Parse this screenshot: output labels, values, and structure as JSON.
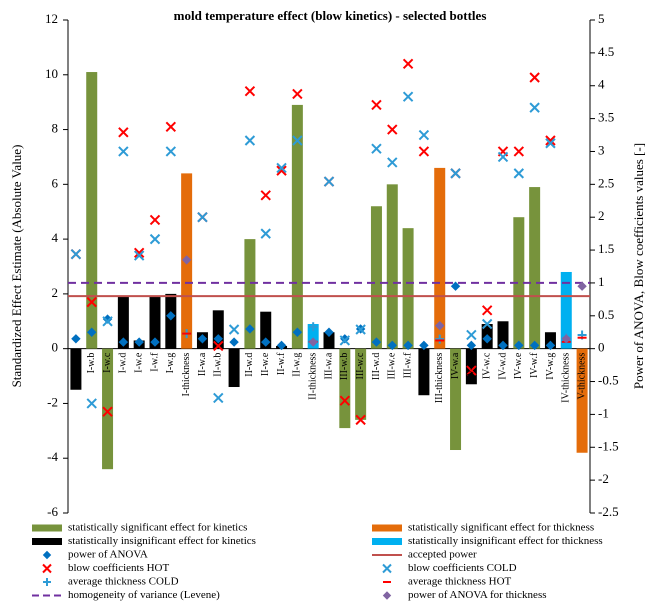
{
  "chart_data": {
    "type": "combo",
    "title": "mold temperature effect (blow kinetics) - selected bottles",
    "y_label": "Standardized Effect Estimate (Absolute Value)",
    "y2_label": "Power of ANOVA, Blow coefficients values [-]",
    "categories": [
      null,
      "I-w.b",
      "I-w.c",
      "I-w.d",
      "I-w.e",
      "I-w.f",
      "I-w.g",
      "I-thickness",
      "II-w.a",
      "II-w.b",
      null,
      "II-w.d",
      "II-w.e",
      "II-w.f",
      "II-w.g",
      "II-thickness",
      "III-w.a",
      "III-w.b",
      "III-w.c",
      "III-w.d",
      "III-w.e",
      "III-w.f",
      "III-w.g",
      "III-thickness",
      "IV-w.a",
      "IV-w.b",
      "IV-w.c",
      "IV-w.d",
      "IV-w.e",
      "IV-w.f",
      "IV-w.g",
      "IV-thickness",
      "V-thickness"
    ],
    "ylim": [
      -6,
      12
    ],
    "yticks": [
      -6,
      -4,
      -2,
      0,
      2,
      4,
      6,
      8,
      10,
      12
    ],
    "y2lim": [
      -2.5,
      5
    ],
    "y2ticks": [
      -2.5,
      -2,
      -1.5,
      -1,
      -0.5,
      0,
      0.5,
      1,
      1.5,
      2,
      2.5,
      3,
      3.5,
      4,
      4.5,
      5
    ],
    "series": [
      {
        "name": "statistically significant effect for kinetics",
        "kind": "bar",
        "color": "#77933c",
        "values": [
          null,
          10.1,
          -4.4,
          null,
          null,
          null,
          null,
          null,
          null,
          null,
          null,
          4.0,
          null,
          null,
          8.9,
          null,
          null,
          -2.9,
          -2.6,
          5.2,
          6.0,
          4.4,
          null,
          null,
          -3.7,
          null,
          null,
          null,
          4.8,
          5.9,
          null,
          null,
          null
        ]
      },
      {
        "name": "statistically significant effect for thickness",
        "kind": "bar",
        "color": "#e46c0a",
        "values": [
          null,
          null,
          null,
          null,
          null,
          null,
          null,
          6.4,
          null,
          null,
          null,
          null,
          null,
          null,
          null,
          null,
          null,
          null,
          null,
          null,
          null,
          null,
          null,
          6.6,
          null,
          null,
          null,
          null,
          null,
          null,
          null,
          null,
          -3.8
        ]
      },
      {
        "name": "statistically insignificant effect for kinetics",
        "kind": "bar",
        "color": "#000000",
        "values": [
          -1.5,
          null,
          null,
          1.9,
          0.3,
          1.9,
          2.0,
          null,
          0.6,
          1.4,
          -1.4,
          null,
          1.35,
          0.1,
          null,
          null,
          0.6,
          null,
          null,
          null,
          null,
          null,
          -1.7,
          null,
          null,
          -1.3,
          0.9,
          1.0,
          null,
          null,
          0.6,
          null,
          null
        ]
      },
      {
        "name": "statistically insignificant effect for thickness",
        "kind": "bar",
        "color": "#00b0f0",
        "values": [
          null,
          null,
          null,
          null,
          null,
          null,
          null,
          null,
          null,
          null,
          null,
          null,
          null,
          null,
          null,
          0.9,
          null,
          null,
          null,
          null,
          null,
          null,
          null,
          null,
          null,
          null,
          null,
          null,
          null,
          null,
          null,
          2.8,
          null
        ]
      },
      {
        "name": "power of ANOVA",
        "kind": "marker",
        "marker": "diamond",
        "axis": "y2",
        "color": "#0070c0",
        "values": [
          0.15,
          0.25,
          0.45,
          0.1,
          0.1,
          0.1,
          0.5,
          null,
          0.15,
          0.15,
          0.1,
          0.3,
          0.1,
          0.05,
          0.25,
          null,
          0.25,
          0.15,
          0.3,
          0.1,
          0.05,
          0.05,
          0.05,
          null,
          0.95,
          0.05,
          0.15,
          0.05,
          0.05,
          0.05,
          0.05,
          null,
          null
        ]
      },
      {
        "name": "accepted power",
        "kind": "hline",
        "axis": "y2",
        "color": "#c0504d",
        "value": 0.8
      },
      {
        "name": "blow coefficients HOT",
        "kind": "marker",
        "marker": "x",
        "color": "#ff0000",
        "values": [
          3.45,
          1.7,
          -2.3,
          7.9,
          3.5,
          4.7,
          8.1,
          null,
          4.8,
          0.1,
          null,
          9.4,
          5.6,
          6.5,
          9.3,
          null,
          6.1,
          -1.9,
          -2.6,
          8.9,
          8.0,
          10.4,
          7.2,
          null,
          6.4,
          -0.8,
          1.4,
          7.2,
          7.2,
          9.9,
          7.6,
          null,
          null
        ]
      },
      {
        "name": "blow coefficients COLD",
        "kind": "marker",
        "marker": "x",
        "color": "#2e9bd6",
        "values": [
          3.45,
          -2.0,
          1.0,
          7.2,
          3.4,
          4.0,
          7.2,
          null,
          4.8,
          -1.8,
          0.7,
          7.6,
          4.2,
          6.6,
          7.6,
          null,
          6.1,
          0.3,
          0.7,
          7.3,
          6.8,
          9.2,
          7.8,
          null,
          6.4,
          0.5,
          0.9,
          7.0,
          6.4,
          8.8,
          7.5,
          null,
          null
        ]
      },
      {
        "name": "average thickness COLD",
        "kind": "marker",
        "marker": "plus",
        "color": "#2e9bd6",
        "values": [
          null,
          null,
          null,
          null,
          null,
          null,
          null,
          0.55,
          null,
          null,
          null,
          null,
          null,
          null,
          null,
          0.8,
          null,
          null,
          null,
          null,
          null,
          null,
          null,
          0.35,
          null,
          null,
          null,
          null,
          null,
          null,
          null,
          0.4,
          0.5
        ]
      },
      {
        "name": "average thickness HOT",
        "kind": "marker",
        "marker": "dash",
        "color": "#ff0000",
        "values": [
          null,
          null,
          null,
          null,
          null,
          null,
          null,
          0.55,
          null,
          null,
          null,
          null,
          null,
          null,
          null,
          0.25,
          null,
          null,
          null,
          null,
          null,
          null,
          null,
          0.3,
          null,
          null,
          null,
          null,
          null,
          null,
          null,
          0.25,
          0.4
        ]
      },
      {
        "name": "homogeneity of variance (Levene)",
        "kind": "hline",
        "dashed": true,
        "axis": "y2",
        "color": "#7030a0",
        "value": 1
      },
      {
        "name": "power of ANOVA  for thickness",
        "kind": "marker",
        "marker": "diamond",
        "axis": "y2",
        "color": "#8064a2",
        "values": [
          null,
          null,
          null,
          null,
          null,
          null,
          null,
          1.35,
          null,
          null,
          null,
          null,
          null,
          null,
          null,
          0.1,
          null,
          null,
          null,
          null,
          null,
          null,
          null,
          0.35,
          null,
          null,
          null,
          null,
          null,
          null,
          null,
          0.15,
          0.95
        ]
      }
    ]
  }
}
